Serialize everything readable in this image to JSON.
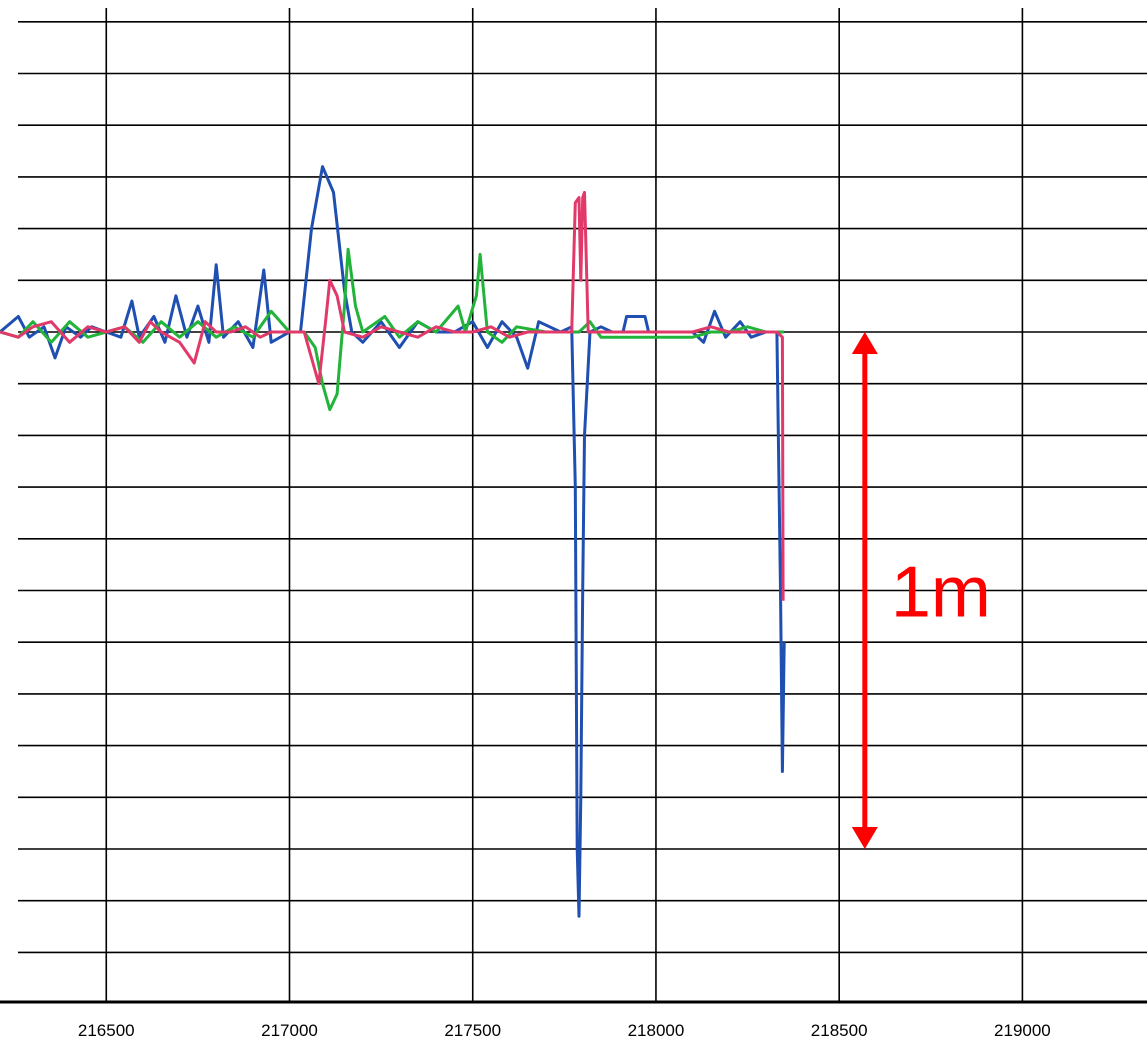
{
  "chart_data": {
    "type": "line",
    "title": "",
    "xlabel": "",
    "ylabel": "",
    "xlim": [
      216210,
      219340
    ],
    "ylim": [
      -1.3,
      0.65
    ],
    "x_ticks": [
      216500,
      217000,
      217500,
      218000,
      218500,
      219000
    ],
    "x_tick_labels": [
      "216500",
      "217000",
      "217500",
      "218000",
      "218500",
      "219000"
    ],
    "y_grid_values": [
      0.6,
      0.5,
      0.4,
      0.3,
      0.2,
      0.1,
      0.0,
      -0.1,
      -0.2,
      -0.3,
      -0.4,
      -0.5,
      -0.6,
      -0.7,
      -0.8,
      -0.9,
      -1.0,
      -1.1,
      -1.2
    ],
    "grid": true,
    "legend": "none",
    "series": [
      {
        "color": "#1f4fb0",
        "points": [
          [
            216210,
            0.0
          ],
          [
            216260,
            0.03
          ],
          [
            216290,
            -0.01
          ],
          [
            216330,
            0.01
          ],
          [
            216360,
            -0.05
          ],
          [
            216390,
            0.01
          ],
          [
            216430,
            -0.01
          ],
          [
            216460,
            0.01
          ],
          [
            216500,
            0.0
          ],
          [
            216540,
            -0.01
          ],
          [
            216570,
            0.06
          ],
          [
            216590,
            -0.01
          ],
          [
            216630,
            0.03
          ],
          [
            216660,
            -0.02
          ],
          [
            216690,
            0.07
          ],
          [
            216720,
            -0.01
          ],
          [
            216750,
            0.05
          ],
          [
            216780,
            -0.02
          ],
          [
            216800,
            0.13
          ],
          [
            216820,
            -0.01
          ],
          [
            216860,
            0.02
          ],
          [
            216900,
            -0.03
          ],
          [
            216930,
            0.12
          ],
          [
            216950,
            -0.02
          ],
          [
            217000,
            0.0
          ],
          [
            217030,
            0.0
          ],
          [
            217060,
            0.2
          ],
          [
            217090,
            0.32
          ],
          [
            217120,
            0.27
          ],
          [
            217150,
            0.08
          ],
          [
            217170,
            0.0
          ],
          [
            217200,
            -0.02
          ],
          [
            217250,
            0.02
          ],
          [
            217300,
            -0.03
          ],
          [
            217350,
            0.02
          ],
          [
            217400,
            0.0
          ],
          [
            217450,
            0.0
          ],
          [
            217500,
            0.02
          ],
          [
            217540,
            -0.03
          ],
          [
            217580,
            0.02
          ],
          [
            217620,
            -0.01
          ],
          [
            217650,
            -0.07
          ],
          [
            217680,
            0.02
          ],
          [
            217740,
            0.0
          ],
          [
            217770,
            0.01
          ],
          [
            217780,
            -0.3
          ],
          [
            217785,
            -1.0
          ],
          [
            217790,
            -1.13
          ],
          [
            217795,
            -0.9
          ],
          [
            217800,
            -0.5
          ],
          [
            217805,
            -0.2
          ],
          [
            217820,
            0.0
          ],
          [
            217850,
            0.01
          ],
          [
            217880,
            0.0
          ],
          [
            217910,
            0.0
          ],
          [
            217920,
            0.03
          ],
          [
            217970,
            0.03
          ],
          [
            217980,
            0.0
          ],
          [
            218040,
            0.0
          ],
          [
            218100,
            0.0
          ],
          [
            218130,
            -0.02
          ],
          [
            218160,
            0.04
          ],
          [
            218190,
            -0.01
          ],
          [
            218230,
            0.02
          ],
          [
            218260,
            -0.01
          ],
          [
            218300,
            0.0
          ],
          [
            218330,
            0.0
          ],
          [
            218340,
            -0.5
          ],
          [
            218345,
            -0.85
          ],
          [
            218350,
            -0.6
          ]
        ]
      },
      {
        "color": "#22b33a",
        "points": [
          [
            216210,
            0.0
          ],
          [
            216260,
            -0.01
          ],
          [
            216300,
            0.02
          ],
          [
            216350,
            -0.02
          ],
          [
            216400,
            0.02
          ],
          [
            216450,
            -0.01
          ],
          [
            216500,
            0.0
          ],
          [
            216550,
            0.01
          ],
          [
            216600,
            -0.02
          ],
          [
            216650,
            0.02
          ],
          [
            216700,
            -0.01
          ],
          [
            216750,
            0.02
          ],
          [
            216800,
            -0.01
          ],
          [
            216850,
            0.01
          ],
          [
            216900,
            -0.01
          ],
          [
            216950,
            0.04
          ],
          [
            217000,
            0.0
          ],
          [
            217040,
            0.0
          ],
          [
            217070,
            -0.03
          ],
          [
            217090,
            -0.1
          ],
          [
            217110,
            -0.15
          ],
          [
            217130,
            -0.12
          ],
          [
            217150,
            0.05
          ],
          [
            217160,
            0.16
          ],
          [
            217180,
            0.05
          ],
          [
            217200,
            0.0
          ],
          [
            217260,
            0.03
          ],
          [
            217300,
            -0.01
          ],
          [
            217350,
            0.02
          ],
          [
            217400,
            0.0
          ],
          [
            217460,
            0.05
          ],
          [
            217480,
            0.0
          ],
          [
            217510,
            0.07
          ],
          [
            217520,
            0.15
          ],
          [
            217540,
            0.0
          ],
          [
            217580,
            -0.02
          ],
          [
            217620,
            0.01
          ],
          [
            217700,
            0.0
          ],
          [
            217760,
            0.0
          ],
          [
            217790,
            0.0
          ],
          [
            217820,
            0.02
          ],
          [
            217850,
            -0.01
          ],
          [
            217900,
            -0.01
          ],
          [
            217950,
            -0.01
          ],
          [
            218000,
            -0.01
          ],
          [
            218100,
            -0.01
          ],
          [
            218150,
            0.0
          ],
          [
            218200,
            0.0
          ],
          [
            218250,
            0.01
          ],
          [
            218300,
            0.0
          ],
          [
            218350,
            0.0
          ]
        ]
      },
      {
        "color": "#e0396a",
        "points": [
          [
            216210,
            0.0
          ],
          [
            216260,
            -0.01
          ],
          [
            216300,
            0.01
          ],
          [
            216350,
            0.02
          ],
          [
            216400,
            -0.02
          ],
          [
            216450,
            0.01
          ],
          [
            216500,
            0.0
          ],
          [
            216550,
            0.01
          ],
          [
            216590,
            -0.02
          ],
          [
            216620,
            0.02
          ],
          [
            216650,
            0.0
          ],
          [
            216700,
            -0.02
          ],
          [
            216740,
            -0.06
          ],
          [
            216770,
            0.02
          ],
          [
            216800,
            0.0
          ],
          [
            216840,
            0.0
          ],
          [
            216880,
            0.01
          ],
          [
            216920,
            -0.01
          ],
          [
            216950,
            0.0
          ],
          [
            217000,
            0.0
          ],
          [
            217040,
            0.0
          ],
          [
            217060,
            -0.05
          ],
          [
            217080,
            -0.1
          ],
          [
            217100,
            0.03
          ],
          [
            217110,
            0.1
          ],
          [
            217130,
            0.07
          ],
          [
            217150,
            0.0
          ],
          [
            217200,
            -0.01
          ],
          [
            217250,
            0.01
          ],
          [
            217300,
            0.0
          ],
          [
            217350,
            -0.01
          ],
          [
            217400,
            0.01
          ],
          [
            217450,
            0.0
          ],
          [
            217500,
            0.0
          ],
          [
            217550,
            0.01
          ],
          [
            217600,
            -0.01
          ],
          [
            217650,
            0.0
          ],
          [
            217700,
            0.0
          ],
          [
            217750,
            0.0
          ],
          [
            217770,
            0.0
          ],
          [
            217780,
            0.25
          ],
          [
            217790,
            0.26
          ],
          [
            217795,
            0.1
          ],
          [
            217800,
            0.26
          ],
          [
            217805,
            0.27
          ],
          [
            217815,
            0.0
          ],
          [
            217850,
            0.0
          ],
          [
            217900,
            0.0
          ],
          [
            218000,
            0.0
          ],
          [
            218100,
            0.0
          ],
          [
            218150,
            0.01
          ],
          [
            218200,
            0.0
          ],
          [
            218300,
            0.0
          ],
          [
            218330,
            0.0
          ],
          [
            218345,
            -0.01
          ],
          [
            218347,
            -0.52
          ]
        ]
      }
    ],
    "annotation": {
      "text": "1m",
      "color": "#ff0000",
      "x": 218570,
      "y_top": 0.0,
      "y_bottom": -1.0
    }
  }
}
